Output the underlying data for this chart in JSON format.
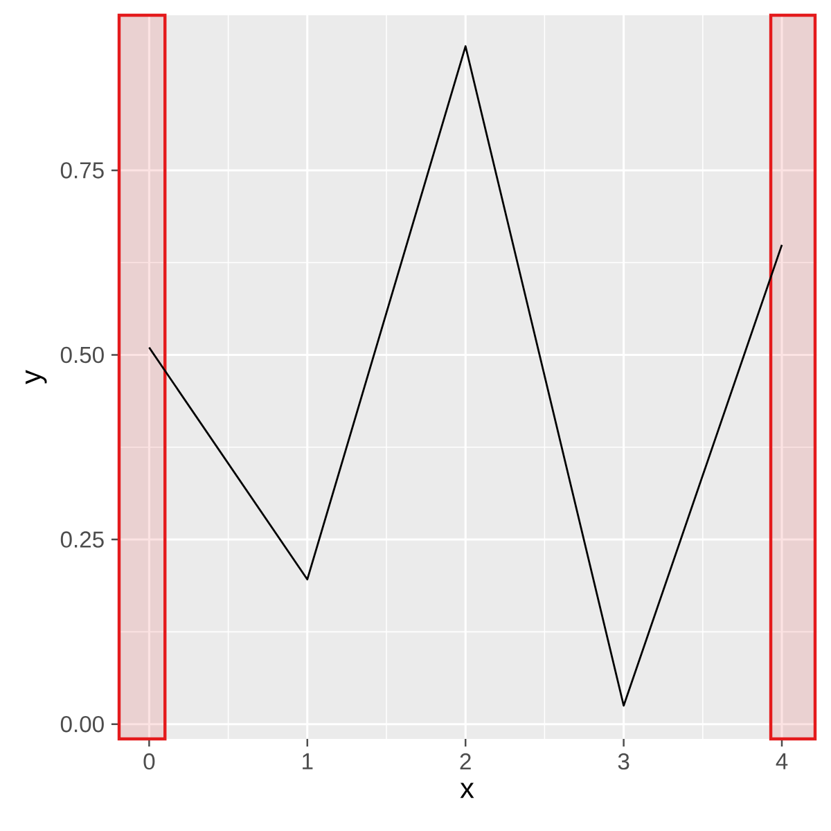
{
  "chart_data": {
    "type": "line",
    "xlabel": "x",
    "ylabel": "y",
    "x": [
      0,
      1,
      2,
      3,
      4
    ],
    "series": [
      {
        "color": "#000000",
        "values": [
          0.51,
          0.196,
          0.918,
          0.025,
          0.649
        ]
      }
    ],
    "xlim": [
      -0.19,
      4.21
    ],
    "ylim": [
      -0.02,
      0.96
    ],
    "xticks": [
      0,
      1,
      2,
      3,
      4
    ],
    "yticks": [
      {
        "value": 0,
        "label": "0.00"
      },
      {
        "value": 0.25,
        "label": "0.25"
      },
      {
        "value": 0.5,
        "label": "0.50"
      },
      {
        "value": 0.75,
        "label": "0.75"
      }
    ],
    "grid": true,
    "bands": [
      {
        "axis": "x",
        "from": -0.19,
        "to": 0.1,
        "color": "#e41a1c"
      },
      {
        "axis": "x",
        "from": 3.93,
        "to": 4.21,
        "color": "#e41a1c"
      }
    ]
  }
}
